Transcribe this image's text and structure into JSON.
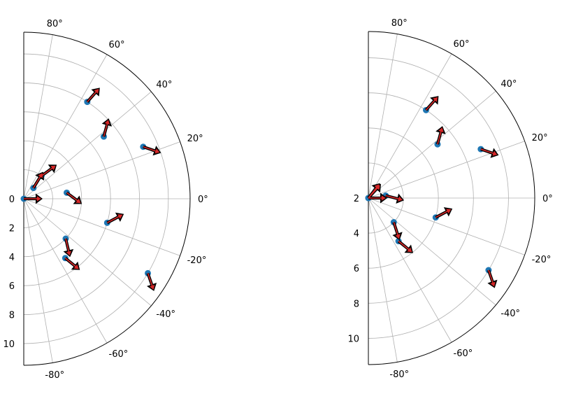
{
  "chart_data": [
    {
      "type": "polar-quiver",
      "theta_range_deg": [
        -90,
        90
      ],
      "r_limits": [
        0,
        11.5
      ],
      "r_tick_labels": [
        "0",
        "2",
        "4",
        "6",
        "8",
        "10"
      ],
      "theta_tick_labels": [
        "-80°",
        "-60°",
        "-40°",
        "-20°",
        "0°",
        "20°",
        "40°",
        "60°",
        "80°"
      ],
      "grid": true,
      "points": [
        {
          "x": 0.0,
          "y": 0.0
        },
        {
          "x": 1.0,
          "y": 0.84
        },
        {
          "x": 2.0,
          "y": 0.91
        },
        {
          "x": 3.0,
          "y": 0.14
        },
        {
          "x": 4.0,
          "y": -0.76
        },
        {
          "x": 5.0,
          "y": -0.96
        },
        {
          "x": 6.0,
          "y": -0.28
        },
        {
          "x": 7.0,
          "y": 0.66
        },
        {
          "x": 8.0,
          "y": 0.99
        },
        {
          "x": 9.0,
          "y": 0.41
        },
        {
          "x": 10.0,
          "y": -0.54
        }
      ],
      "vector_series": [
        {
          "color": "#000000",
          "dx": 1.0,
          "dy_source": "cos(x)"
        },
        {
          "color": "#d62728",
          "dx": 1.0,
          "dy_source": "cos(x)"
        }
      ]
    },
    {
      "type": "polar-quiver",
      "theta_range_deg": [
        -90,
        90
      ],
      "r_limits": [
        2,
        11.5
      ],
      "r_tick_labels": [
        "2",
        "4",
        "6",
        "8",
        "10"
      ],
      "theta_tick_labels": [
        "-80°",
        "-60°",
        "-40°",
        "-20°",
        "0°",
        "20°",
        "40°",
        "60°",
        "80°"
      ],
      "grid": true,
      "points": [
        {
          "x": 0.0,
          "y": 0.0
        },
        {
          "x": 1.0,
          "y": 0.84
        },
        {
          "x": 2.0,
          "y": 0.91
        },
        {
          "x": 3.0,
          "y": 0.14
        },
        {
          "x": 4.0,
          "y": -0.76
        },
        {
          "x": 5.0,
          "y": -0.96
        },
        {
          "x": 6.0,
          "y": -0.28
        },
        {
          "x": 7.0,
          "y": 0.66
        },
        {
          "x": 8.0,
          "y": 0.99
        },
        {
          "x": 9.0,
          "y": 0.41
        },
        {
          "x": 10.0,
          "y": -0.54
        }
      ],
      "vector_series": [
        {
          "color": "#000000",
          "dx": 1.0,
          "dy_source": "cos(x)"
        },
        {
          "color": "#d62728",
          "dx": 1.0,
          "dy_source": "cos(x)"
        }
      ]
    }
  ]
}
